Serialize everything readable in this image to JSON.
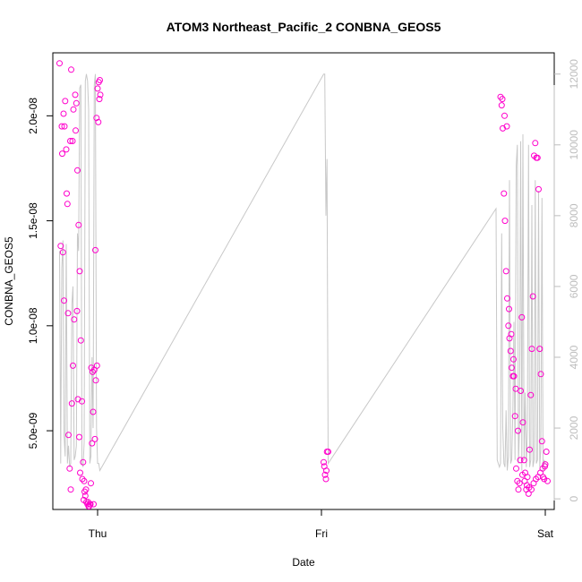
{
  "chart_data": {
    "type": "scatter",
    "title": "ATOM3 Northeast_Pacific_2 CONBNA_GEOS5",
    "xlabel": "Date",
    "ylabel": "CONBNA_GEOS5",
    "x_ticks": [
      "Thu",
      "Fri",
      "Sat"
    ],
    "y_ticks": [
      "5.0e-09",
      "1.0e-08",
      "1.5e-08",
      "2.0e-08"
    ],
    "y2_ticks": [
      "0",
      "2000",
      "4000",
      "6000",
      "8000",
      "10000",
      "12000"
    ],
    "x_range_days": [
      -0.2,
      2.04
    ],
    "ylim": [
      1.25e-09,
      2.3e-08
    ],
    "y2lim": [
      -300,
      12600
    ],
    "point_color": "#ff00cc",
    "line_color": "#c8c8c8",
    "series": [
      {
        "values_x_days": [
          -0.17,
          -0.16,
          -0.155,
          -0.15,
          -0.145,
          -0.14,
          -0.135,
          -0.13,
          -0.125,
          -0.12,
          -0.115,
          -0.11,
          -0.105,
          -0.1,
          -0.095,
          -0.09,
          -0.085,
          -0.08,
          -0.075,
          -0.07,
          -0.065,
          -0.06,
          -0.055,
          -0.05,
          -0.045,
          -0.04,
          -0.035,
          -0.03,
          -0.025,
          -0.02,
          -0.015,
          -0.01,
          -0.005,
          0.0,
          0.005,
          0.01,
          -0.165,
          -0.158,
          -0.152,
          -0.148,
          -0.138,
          -0.132,
          -0.122,
          -0.118,
          -0.112,
          -0.108,
          -0.098,
          -0.092,
          -0.088,
          -0.082,
          -0.078,
          -0.068,
          -0.062,
          -0.058,
          -0.052,
          -0.042,
          -0.038,
          -0.032,
          -0.028,
          -0.022,
          -0.018,
          -0.012,
          -0.008,
          -0.003,
          0.003,
          0.008,
          0.012,
          1.01,
          1.013,
          1.016,
          1.02,
          1.022,
          1.025,
          1.03,
          1.8,
          1.805,
          1.81,
          1.815,
          1.82,
          1.825,
          1.83,
          1.835,
          1.84,
          1.845,
          1.85,
          1.855,
          1.86,
          1.865,
          1.87,
          1.875,
          1.88,
          1.885,
          1.89,
          1.895,
          1.9,
          1.905,
          1.91,
          1.915,
          1.92,
          1.925,
          1.93,
          1.935,
          1.94,
          1.945,
          1.95,
          1.955,
          1.96,
          1.965,
          1.97,
          1.975,
          1.98,
          1.985,
          1.99,
          1.995,
          2.0,
          2.005,
          2.01,
          1.808,
          1.818,
          1.828,
          1.838,
          1.848,
          1.858,
          1.868,
          1.878,
          1.888,
          1.898,
          1.908,
          1.918,
          1.928,
          1.938,
          1.948,
          1.958,
          1.968,
          1.978,
          1.988,
          1.998
        ],
        "values": [
          2.25e-08,
          1.95e-08,
          1.35e-08,
          1.12e-08,
          2.07e-08,
          1.84e-08,
          1.58e-08,
          4.8e-09,
          3.2e-09,
          2.2e-09,
          6.3e-09,
          8.1e-09,
          1.03e-08,
          2.1e-08,
          2.06e-08,
          1.74e-08,
          1.48e-08,
          1.26e-08,
          9.3e-09,
          6.4e-09,
          3.5e-09,
          2.6e-09,
          1.9e-09,
          1.6e-09,
          1.5e-09,
          1.4e-09,
          1.5e-09,
          2.5e-09,
          4.4e-09,
          5.9e-09,
          7.9e-09,
          1.36e-08,
          1.99e-08,
          2.13e-08,
          2.16e-08,
          2.17e-08,
          1.38e-08,
          1.82e-08,
          2.01e-08,
          1.95e-08,
          1.63e-08,
          1.06e-08,
          1.88e-08,
          2.22e-08,
          1.88e-08,
          2.03e-08,
          1.93e-08,
          1.07e-08,
          6.5e-09,
          4.7e-09,
          3e-09,
          2.7e-09,
          1.7e-09,
          2.1e-09,
          2.2e-09,
          1.6e-09,
          1.4e-09,
          1.5e-09,
          8e-09,
          7.8e-09,
          1.5e-09,
          4.6e-09,
          7.4e-09,
          8.1e-09,
          1.97e-08,
          2.08e-08,
          2.1e-08,
          3.5e-09,
          3.3e-09,
          2.9e-09,
          2.7e-09,
          3.1e-09,
          4e-09,
          4e-09,
          2.09e-08,
          2.05e-08,
          1.94e-08,
          1.63e-08,
          1.5e-08,
          1.26e-08,
          1.13e-08,
          1e-08,
          9.4e-09,
          8.8e-09,
          8e-09,
          7.6e-09,
          7.6e-09,
          5.7e-09,
          3.2e-09,
          2.6e-09,
          2.2e-09,
          2.5e-09,
          6.9e-09,
          1.04e-08,
          5.4e-09,
          3.6e-09,
          3e-09,
          2.2e-09,
          2.8e-09,
          2e-09,
          4.1e-09,
          6.7e-09,
          8.9e-09,
          1.14e-08,
          1.81e-08,
          1.87e-08,
          1.8e-08,
          1.8e-08,
          1.65e-08,
          8.9e-09,
          7.7e-09,
          4.5e-09,
          2.8e-09,
          2.7e-09,
          3.4e-09,
          4e-09,
          2.6e-09,
          2.08e-08,
          2e-08,
          1.95e-08,
          1.08e-08,
          9.6e-09,
          8.4e-09,
          7e-09,
          5e-09,
          3.6e-09,
          2.9e-09,
          2.6e-09,
          2.4e-09,
          2.3e-09,
          2.2e-09,
          2.5e-09,
          2.7e-09,
          2.8e-09,
          3e-09,
          3.2e-09,
          3.3e-09,
          3.1e-09,
          3e-09
        ]
      },
      {
        "axis": "right",
        "values_x_days": [
          -0.17,
          -0.165,
          -0.16,
          -0.155,
          -0.15,
          -0.145,
          -0.14,
          -0.135,
          -0.13,
          -0.125,
          -0.12,
          -0.115,
          -0.11,
          -0.105,
          -0.1,
          -0.095,
          -0.09,
          -0.085,
          -0.08,
          -0.075,
          -0.07,
          -0.065,
          -0.06,
          -0.055,
          -0.05,
          -0.045,
          -0.04,
          -0.035,
          -0.03,
          -0.025,
          -0.02,
          -0.015,
          -0.01,
          -0.005,
          0.0,
          0.005,
          0.01,
          1.01,
          1.015,
          1.02,
          1.025,
          1.03,
          1.78,
          1.785,
          1.79,
          1.795,
          1.8,
          1.805,
          1.81,
          1.815,
          1.82,
          1.825,
          1.83,
          1.835,
          1.84,
          1.845,
          1.85,
          1.855,
          1.86,
          1.865,
          1.87,
          1.875,
          1.88,
          1.885,
          1.89,
          1.895,
          1.9,
          1.905,
          1.91,
          1.915,
          1.92,
          1.925,
          1.93,
          1.935,
          1.94,
          1.945,
          1.95,
          1.955,
          1.96,
          1.965,
          1.97,
          1.975,
          1.98,
          1.985,
          1.99,
          1.995,
          2.0
        ],
        "values": [
          7000,
          1000,
          6500,
          7300,
          1800,
          1200,
          7200,
          1000,
          1500,
          900,
          1000,
          5500,
          6000,
          1100,
          1200,
          1500,
          7500,
          7000,
          11600,
          11700,
          1000,
          900,
          1600,
          11800,
          12000,
          11800,
          11000,
          1000,
          1200,
          4000,
          2000,
          11700,
          12000,
          2000,
          1000,
          1000,
          800,
          12000,
          12000,
          8000,
          9600,
          1000,
          8200,
          1100,
          1000,
          900,
          1000,
          7500,
          2000,
          1000,
          900,
          2500,
          800,
          1200,
          9000,
          1000,
          1100,
          2500,
          5000,
          1100,
          9400,
          10000,
          1000,
          2000,
          10100,
          800,
          10300,
          1100,
          3000,
          900,
          2000,
          10000,
          900,
          1100,
          8300,
          900,
          1100,
          9000,
          1000,
          1100,
          8700,
          900,
          1400,
          8500,
          800,
          1100,
          1000
        ]
      }
    ]
  }
}
